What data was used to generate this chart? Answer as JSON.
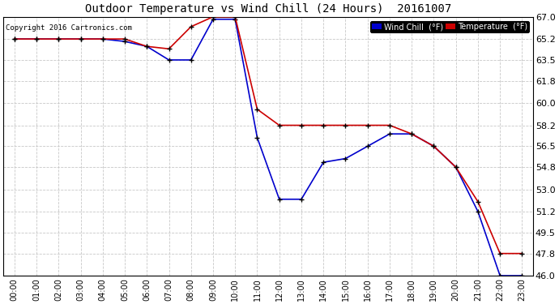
{
  "title": "Outdoor Temperature vs Wind Chill (24 Hours)  20161007",
  "copyright": "Copyright 2016 Cartronics.com",
  "background_color": "#ffffff",
  "plot_bg_color": "#ffffff",
  "grid_color": "#c8c8c8",
  "ylim": [
    46.0,
    67.0
  ],
  "yticks": [
    46.0,
    47.8,
    49.5,
    51.2,
    53.0,
    54.8,
    56.5,
    58.2,
    60.0,
    61.8,
    63.5,
    65.2,
    67.0
  ],
  "xtick_labels": [
    "00:00",
    "01:00",
    "02:00",
    "03:00",
    "04:00",
    "05:00",
    "06:00",
    "07:00",
    "08:00",
    "09:00",
    "10:00",
    "11:00",
    "12:00",
    "13:00",
    "14:00",
    "15:00",
    "16:00",
    "17:00",
    "18:00",
    "19:00",
    "20:00",
    "21:00",
    "22:00",
    "23:00"
  ],
  "temp_color": "#cc0000",
  "wind_color": "#0000cc",
  "marker_color": "#000000",
  "legend_wind_bg": "#0000cc",
  "legend_temp_bg": "#cc0000",
  "temperature": [
    65.2,
    65.2,
    65.2,
    65.2,
    65.2,
    65.2,
    64.6,
    64.4,
    66.2,
    67.0,
    67.0,
    59.5,
    58.2,
    58.2,
    58.2,
    58.2,
    58.2,
    58.2,
    57.5,
    56.5,
    54.8,
    52.0,
    47.8,
    47.8
  ],
  "wind_chill": [
    65.2,
    65.2,
    65.2,
    65.2,
    65.2,
    65.0,
    64.6,
    63.5,
    63.5,
    66.8,
    66.8,
    57.2,
    52.2,
    52.2,
    55.2,
    55.5,
    56.5,
    57.5,
    57.5,
    56.5,
    54.8,
    51.2,
    46.0,
    46.0
  ]
}
